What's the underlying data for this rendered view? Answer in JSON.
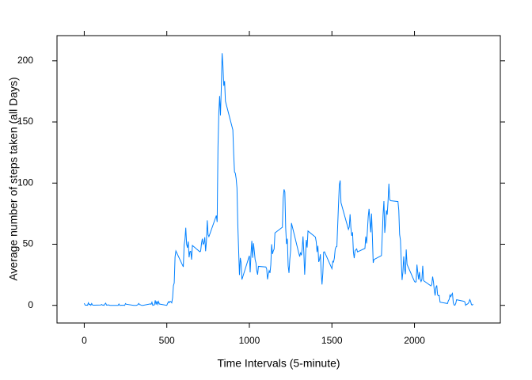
{
  "chart_data": {
    "type": "line",
    "xlabel": "Time Intervals (5-minute)",
    "ylabel": "Average number of steps taken (all Days)",
    "xlim": [
      -165,
      2520
    ],
    "ylim": [
      -14.43,
      220.6
    ],
    "xticks": [
      0,
      500,
      1000,
      1500,
      2000
    ],
    "yticks": [
      0,
      50,
      100,
      150,
      200
    ],
    "x": [
      0,
      5,
      10,
      15,
      20,
      25,
      30,
      35,
      40,
      45,
      50,
      55,
      100,
      105,
      110,
      115,
      120,
      125,
      130,
      135,
      140,
      145,
      150,
      155,
      200,
      205,
      210,
      215,
      220,
      225,
      230,
      235,
      240,
      245,
      250,
      255,
      300,
      305,
      310,
      315,
      320,
      325,
      330,
      335,
      340,
      345,
      350,
      355,
      400,
      405,
      410,
      415,
      420,
      425,
      430,
      435,
      440,
      445,
      450,
      455,
      500,
      505,
      510,
      515,
      520,
      525,
      530,
      535,
      540,
      545,
      550,
      555,
      600,
      605,
      610,
      615,
      620,
      625,
      630,
      635,
      640,
      645,
      650,
      655,
      700,
      705,
      710,
      715,
      720,
      725,
      730,
      735,
      740,
      745,
      750,
      755,
      800,
      805,
      810,
      815,
      820,
      825,
      830,
      835,
      840,
      845,
      850,
      855,
      900,
      905,
      910,
      915,
      920,
      925,
      930,
      935,
      940,
      945,
      950,
      955,
      1000,
      1005,
      1010,
      1015,
      1020,
      1025,
      1030,
      1035,
      1040,
      1045,
      1050,
      1055,
      1100,
      1105,
      1110,
      1115,
      1120,
      1125,
      1130,
      1135,
      1140,
      1145,
      1150,
      1155,
      1200,
      1205,
      1210,
      1215,
      1220,
      1225,
      1230,
      1235,
      1240,
      1245,
      1250,
      1255,
      1300,
      1305,
      1310,
      1315,
      1320,
      1325,
      1330,
      1335,
      1340,
      1345,
      1350,
      1355,
      1400,
      1405,
      1410,
      1415,
      1420,
      1425,
      1430,
      1435,
      1440,
      1445,
      1450,
      1455,
      1500,
      1505,
      1510,
      1515,
      1520,
      1525,
      1530,
      1535,
      1540,
      1545,
      1550,
      1555,
      1600,
      1605,
      1610,
      1615,
      1620,
      1625,
      1630,
      1635,
      1640,
      1645,
      1650,
      1655,
      1700,
      1705,
      1710,
      1715,
      1720,
      1725,
      1730,
      1735,
      1740,
      1745,
      1750,
      1755,
      1800,
      1805,
      1810,
      1815,
      1820,
      1825,
      1830,
      1835,
      1840,
      1845,
      1850,
      1855,
      1900,
      1905,
      1910,
      1915,
      1920,
      1925,
      1930,
      1935,
      1940,
      1945,
      1950,
      1955,
      2000,
      2005,
      2010,
      2015,
      2020,
      2025,
      2030,
      2035,
      2040,
      2045,
      2050,
      2055,
      2100,
      2105,
      2110,
      2115,
      2120,
      2125,
      2130,
      2135,
      2140,
      2145,
      2150,
      2155,
      2200,
      2205,
      2210,
      2215,
      2220,
      2225,
      2230,
      2235,
      2240,
      2245,
      2250,
      2255,
      2300,
      2305,
      2310,
      2315,
      2320,
      2325,
      2330,
      2335,
      2340,
      2345,
      2350,
      2355
    ],
    "series": [
      {
        "color": "#0080ff",
        "values": [
          1.7,
          0.3,
          0.1,
          0.2,
          0.1,
          2.1,
          0.5,
          0.9,
          0,
          1.5,
          0.3,
          0.1,
          0.3,
          0.7,
          0.2,
          0.3,
          0,
          1.1,
          1.8,
          0.2,
          0.2,
          0.4,
          0.3,
          0,
          0,
          0,
          1.1,
          0,
          0,
          0.1,
          0,
          0.2,
          0,
          0,
          1.5,
          0.9,
          0,
          0,
          0,
          0,
          0.2,
          0.6,
          1.6,
          0.6,
          0.5,
          0.1,
          0,
          0,
          1.2,
          0.9,
          2.6,
          0,
          0.3,
          0.4,
          4.1,
          0.7,
          3.5,
          0.8,
          3.1,
          1.1,
          0,
          1.6,
          3.0,
          2.2,
          3.3,
          3.0,
          2.1,
          6.1,
          16.0,
          18.3,
          39.5,
          44.5,
          31.5,
          49.3,
          53.8,
          63.5,
          50.0,
          47.1,
          52.2,
          39.3,
          44.0,
          44.2,
          37.4,
          49.0,
          43.8,
          44.4,
          50.5,
          54.5,
          49.9,
          50.98,
          55.7,
          44.3,
          52.3,
          69.5,
          57.8,
          56.2,
          73.4,
          68.2,
          129.4,
          157.5,
          171.2,
          155.4,
          177.3,
          206.2,
          195.9,
          179.6,
          183.4,
          167.0,
          143.5,
          124.0,
          109.1,
          108.1,
          103.7,
          95.97,
          66.2,
          45.2,
          24.8,
          38.8,
          34.98,
          21.1,
          40.6,
          26.98,
          42.4,
          52.7,
          38.9,
          50.8,
          44.3,
          37.4,
          34.7,
          28.3,
          25.1,
          31.9,
          31.4,
          29.7,
          21.3,
          25.5,
          28.4,
          26.5,
          33.4,
          49.98,
          42.0,
          44.6,
          46.0,
          59.2,
          63.9,
          87.7,
          94.8,
          92.8,
          63.4,
          50.2,
          54.5,
          32.4,
          26.5,
          37.7,
          45.1,
          67.3,
          42.3,
          39.9,
          43.3,
          40.98,
          46.2,
          56.4,
          42.8,
          25.1,
          39.96,
          53.5,
          47.3,
          60.8,
          55.8,
          51.96,
          43.6,
          48.7,
          35.5,
          37.5,
          41.8,
          27.5,
          17.1,
          26.1,
          43.6,
          43.8,
          30.0,
          36.1,
          35.5,
          38.8,
          45.96,
          47.8,
          48.1,
          65.3,
          82.9,
          98.7,
          102.1,
          83.96,
          62.1,
          64.1,
          74.5,
          63.2,
          56.9,
          59.8,
          43.9,
          38.6,
          44.7,
          45.5,
          46.2,
          43.7,
          46.6,
          56.3,
          50.7,
          61.2,
          72.7,
          78.9,
          68.9,
          59.7,
          75.1,
          56.5,
          34.8,
          37.5,
          40.7,
          58.0,
          74.7,
          85.3,
          59.3,
          67.8,
          77.7,
          74.2,
          85.3,
          99.5,
          86.6,
          85.6,
          84.9,
          77.8,
          58.0,
          53.4,
          36.3,
          20.7,
          27.4,
          40.0,
          30.2,
          25.5,
          45.7,
          33.5,
          19.6,
          19.0,
          19.3,
          33.3,
          26.8,
          21.2,
          27.3,
          21.3,
          19.5,
          21.3,
          32.3,
          20.2,
          15.9,
          17.2,
          23.5,
          19.2,
          12.5,
          8.0,
          14.7,
          16.3,
          8.7,
          7.8,
          8.1,
          2.6,
          1.5,
          3.7,
          4.8,
          8.5,
          7.1,
          8.7,
          9.8,
          2.2,
          0.3,
          0.1,
          1.6,
          4.6,
          3.3,
          2.8,
          0,
          0.8,
          0.96,
          1.6,
          2.6,
          4.7,
          3.3,
          0.6,
          0.2,
          1.1
        ]
      }
    ]
  }
}
